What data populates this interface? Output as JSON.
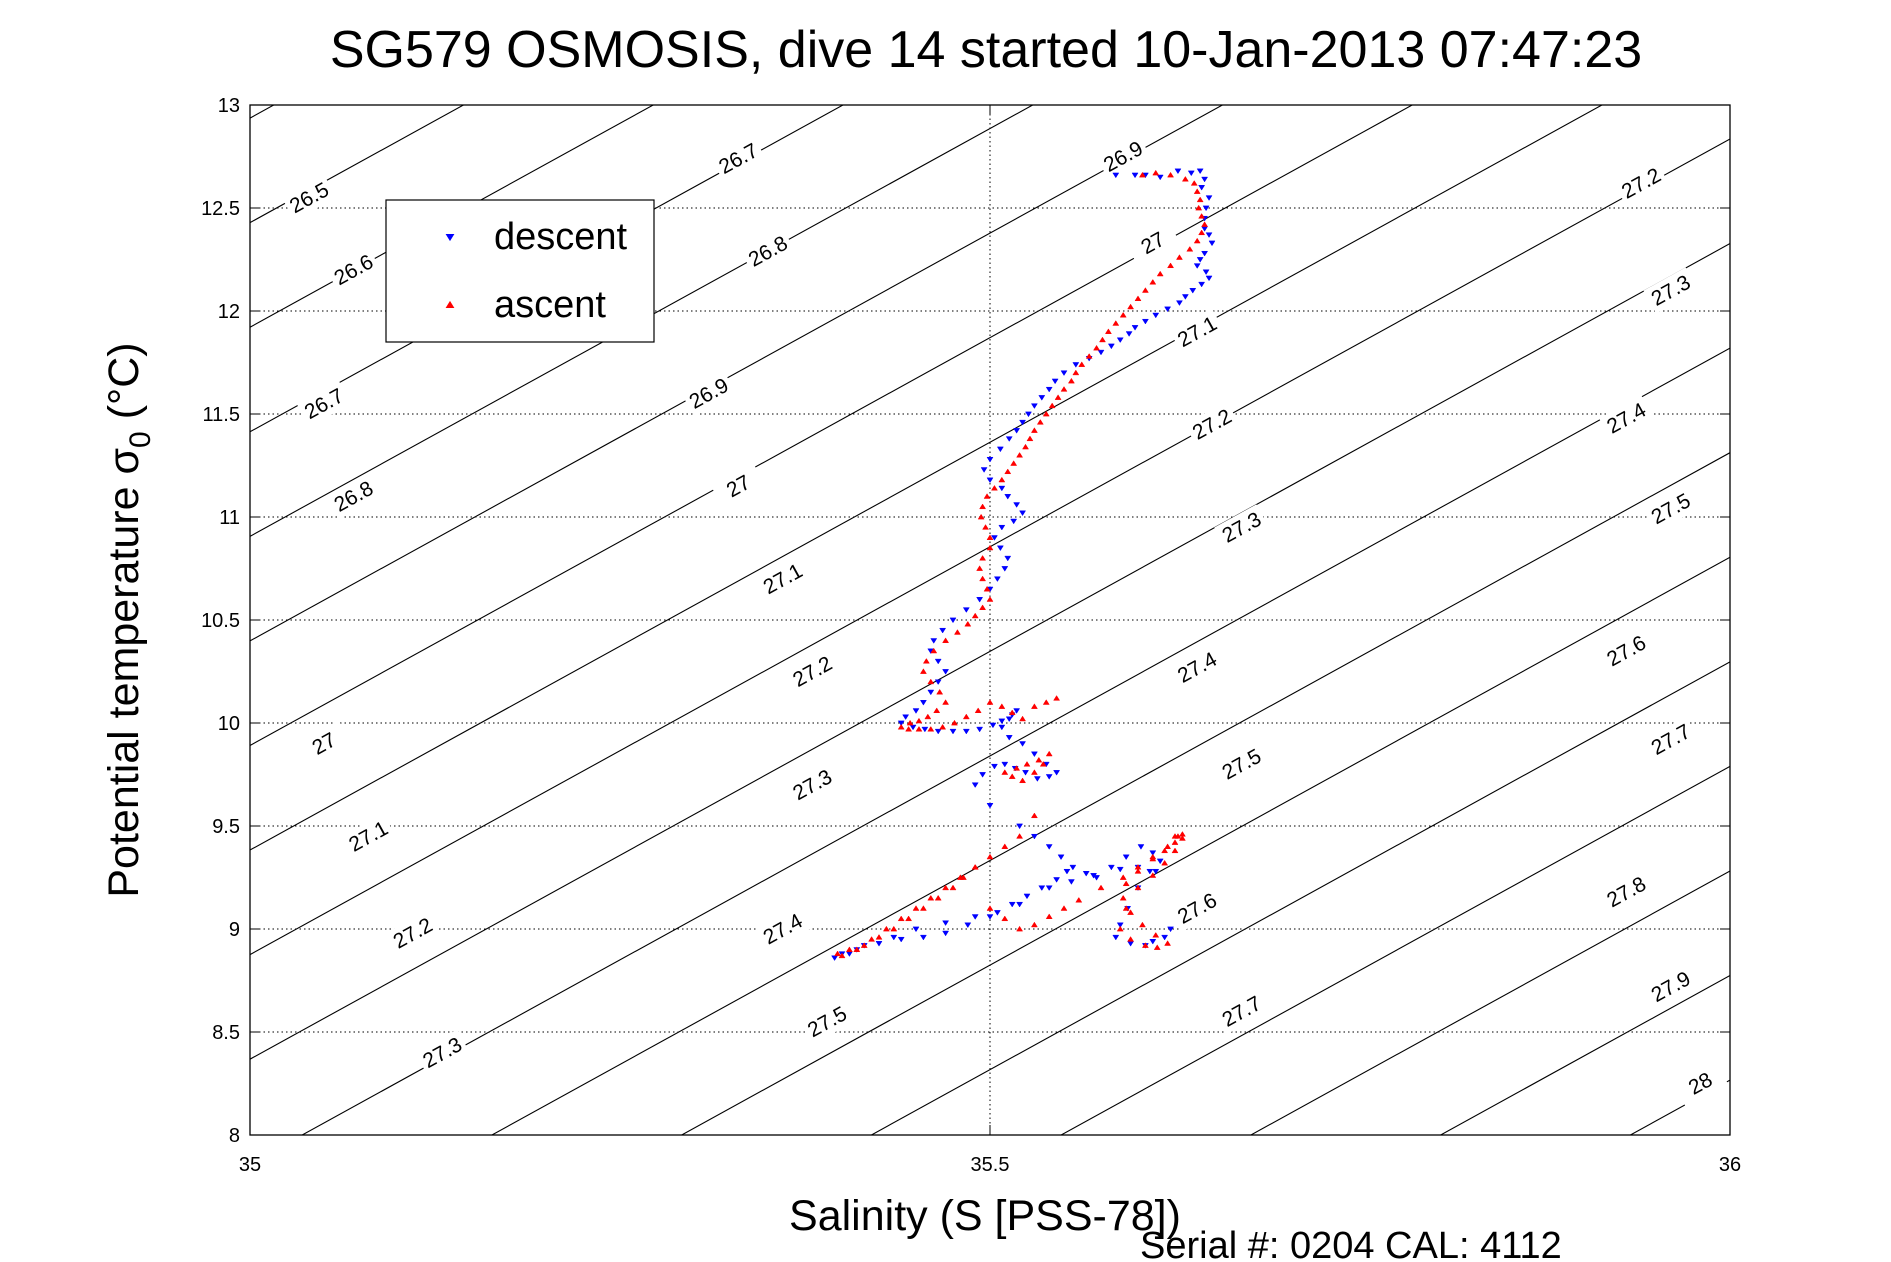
{
  "chart_data": {
    "type": "scatter",
    "title": "SG579 OSMOSIS, dive 14 started 10-Jan-2013 07:47:23",
    "xlabel": "Salinity (S [PSS-78])",
    "ylabel": "Potential temperature",
    "ylabel_symbol": "σ",
    "ylabel_subscript": "0",
    "ylabel_unit": "(°C)",
    "xlim": [
      35,
      36
    ],
    "ylim": [
      8,
      13
    ],
    "x_ticks": [
      35,
      35.5,
      36
    ],
    "x_tick_labels": [
      "35",
      "35.5",
      "36"
    ],
    "y_ticks": [
      8,
      8.5,
      9,
      9.5,
      10,
      10.5,
      11,
      11.5,
      12,
      12.5,
      13
    ],
    "y_tick_labels": [
      "8",
      "8.5",
      "9",
      "9.5",
      "10",
      "10.5",
      "11",
      "11.5",
      "12",
      "12.5",
      "13"
    ],
    "grid": true,
    "legend_position": "top-left",
    "footer": "Serial #: 0204  CAL: 4112",
    "contour_levels": [
      {
        "value": 26.5,
        "label": "26.5",
        "pos": [
          35.04,
          12.55
        ]
      },
      {
        "value": 26.6,
        "label": "26.6",
        "pos": [
          35.07,
          12.2
        ]
      },
      {
        "value": 26.7,
        "label": "26.7",
        "pos": [
          35.05,
          11.55
        ]
      },
      {
        "value": 26.8,
        "label": "26.8",
        "pos": [
          35.07,
          11.1
        ]
      },
      {
        "value": 27.0,
        "label": "27",
        "pos": [
          35.05,
          9.9
        ]
      },
      {
        "value": 27.1,
        "label": "27.1",
        "pos": [
          35.08,
          9.45
        ]
      },
      {
        "value": 27.2,
        "label": "27.2",
        "pos": [
          35.11,
          8.98
        ]
      },
      {
        "value": 27.3,
        "label": "27.3",
        "pos": [
          35.13,
          8.4
        ]
      },
      {
        "value": 26.7,
        "label": "26.7",
        "pos": [
          35.33,
          12.74
        ]
      },
      {
        "value": 26.8,
        "label": "26.8",
        "pos": [
          35.35,
          12.29
        ]
      },
      {
        "value": 26.9,
        "label": "26.9",
        "pos": [
          35.31,
          11.6
        ]
      },
      {
        "value": 27.0,
        "label": "27",
        "pos": [
          35.33,
          11.15
        ]
      },
      {
        "value": 27.1,
        "label": "27.1",
        "pos": [
          35.36,
          10.7
        ]
      },
      {
        "value": 27.2,
        "label": "27.2",
        "pos": [
          35.38,
          10.25
        ]
      },
      {
        "value": 27.3,
        "label": "27.3",
        "pos": [
          35.38,
          9.7
        ]
      },
      {
        "value": 27.4,
        "label": "27.4",
        "pos": [
          35.36,
          9.0
        ]
      },
      {
        "value": 27.5,
        "label": "27.5",
        "pos": [
          35.39,
          8.55
        ]
      },
      {
        "value": 26.9,
        "label": "26.9",
        "pos": [
          35.59,
          12.75
        ]
      },
      {
        "value": 27.0,
        "label": "27",
        "pos": [
          35.61,
          12.33
        ]
      },
      {
        "value": 27.1,
        "label": "27.1",
        "pos": [
          35.64,
          11.9
        ]
      },
      {
        "value": 27.2,
        "label": "27.2",
        "pos": [
          35.65,
          11.45
        ]
      },
      {
        "value": 27.3,
        "label": "27.3",
        "pos": [
          35.67,
          10.95
        ]
      },
      {
        "value": 27.4,
        "label": "27.4",
        "pos": [
          35.64,
          10.27
        ]
      },
      {
        "value": 27.5,
        "label": "27.5",
        "pos": [
          35.67,
          9.8
        ]
      },
      {
        "value": 27.6,
        "label": "27.6",
        "pos": [
          35.64,
          9.1
        ]
      },
      {
        "value": 27.7,
        "label": "27.7",
        "pos": [
          35.67,
          8.6
        ]
      },
      {
        "value": 27.2,
        "label": "27.2",
        "pos": [
          35.94,
          12.62
        ]
      },
      {
        "value": 27.3,
        "label": "27.3",
        "pos": [
          35.96,
          12.1
        ]
      },
      {
        "value": 27.4,
        "label": "27.4",
        "pos": [
          35.93,
          11.48
        ]
      },
      {
        "value": 27.5,
        "label": "27.5",
        "pos": [
          35.96,
          11.04
        ]
      },
      {
        "value": 27.6,
        "label": "27.6",
        "pos": [
          35.93,
          10.35
        ]
      },
      {
        "value": 27.7,
        "label": "27.7",
        "pos": [
          35.96,
          9.92
        ]
      },
      {
        "value": 27.8,
        "label": "27.8",
        "pos": [
          35.93,
          9.18
        ]
      },
      {
        "value": 27.9,
        "label": "27.9",
        "pos": [
          35.96,
          8.72
        ]
      },
      {
        "value": 28.0,
        "label": "28",
        "pos": [
          35.98,
          8.25
        ]
      }
    ],
    "series": [
      {
        "name": "descent",
        "color": "#0000ff",
        "marker": "triangle-down",
        "x": [
          35.585,
          35.598,
          35.605,
          35.615,
          35.627,
          35.636,
          35.642,
          35.645,
          35.643,
          35.648,
          35.646,
          35.645,
          35.645,
          35.648,
          35.65,
          35.645,
          35.642,
          35.64,
          35.646,
          35.648,
          35.643,
          35.637,
          35.632,
          35.628,
          35.62,
          35.612,
          35.605,
          35.598,
          35.594,
          35.588,
          35.582,
          35.575,
          35.567,
          35.558,
          35.55,
          35.544,
          35.54,
          35.535,
          35.53,
          35.526,
          35.522,
          35.518,
          35.513,
          35.507,
          35.5,
          35.496,
          35.5,
          35.508,
          35.512,
          35.518,
          35.522,
          35.516,
          35.508,
          35.503,
          35.507,
          35.512,
          35.51,
          35.505,
          35.5,
          35.493,
          35.484,
          35.475,
          35.468,
          35.462,
          35.46,
          35.465,
          35.47,
          35.465,
          35.46,
          35.455,
          35.45,
          35.443,
          35.44,
          35.448,
          35.456,
          35.465,
          35.475,
          35.484,
          35.493,
          35.502,
          35.508,
          35.515,
          35.518,
          35.513,
          35.508,
          35.513,
          35.522,
          35.53,
          35.538,
          35.545,
          35.54,
          35.532,
          35.524,
          35.517,
          35.51,
          35.503,
          35.495,
          35.49,
          35.5,
          35.52,
          35.53,
          35.54,
          35.548,
          35.556,
          35.565,
          35.572,
          35.582,
          35.592,
          35.602,
          35.61,
          35.615,
          35.608,
          35.6,
          35.593,
          35.588,
          35.585,
          35.595,
          35.605,
          35.61,
          35.618,
          35.622,
          35.612,
          35.6,
          35.588,
          35.57,
          35.555,
          35.54,
          35.52,
          35.5,
          35.485,
          35.47,
          35.455,
          35.44,
          35.425,
          35.41,
          35.4,
          35.395,
          35.405,
          35.415,
          35.435,
          35.45,
          35.47,
          35.49,
          35.505,
          35.515,
          35.525,
          35.535,
          35.545,
          35.552
        ],
        "y": [
          12.66,
          12.66,
          12.66,
          12.65,
          12.68,
          12.67,
          12.68,
          12.64,
          12.6,
          12.55,
          12.5,
          12.45,
          12.4,
          12.37,
          12.33,
          12.28,
          12.25,
          12.22,
          12.19,
          12.16,
          12.13,
          12.1,
          12.07,
          12.04,
          12.01,
          11.98,
          11.95,
          11.92,
          11.89,
          11.86,
          11.83,
          11.8,
          11.77,
          11.74,
          11.7,
          11.66,
          11.62,
          11.58,
          11.54,
          11.5,
          11.46,
          11.42,
          11.38,
          11.33,
          11.28,
          11.23,
          11.18,
          11.14,
          11.1,
          11.06,
          11.02,
          10.98,
          10.95,
          10.9,
          10.85,
          10.8,
          10.75,
          10.7,
          10.65,
          10.6,
          10.55,
          10.5,
          10.45,
          10.4,
          10.35,
          10.3,
          10.25,
          10.2,
          10.15,
          10.1,
          10.06,
          10.03,
          10.0,
          9.98,
          9.97,
          9.96,
          9.96,
          9.96,
          9.97,
          9.99,
          10.01,
          10.04,
          10.06,
          10.02,
          9.98,
          9.93,
          9.9,
          9.85,
          9.8,
          9.76,
          9.74,
          9.73,
          9.76,
          9.78,
          9.8,
          9.79,
          9.75,
          9.7,
          9.6,
          9.5,
          9.45,
          9.4,
          9.35,
          9.3,
          9.27,
          9.25,
          9.3,
          9.35,
          9.4,
          9.37,
          9.33,
          9.28,
          9.2,
          9.1,
          9.02,
          8.96,
          8.93,
          8.92,
          8.94,
          8.96,
          9.0,
          9.28,
          9.3,
          9.29,
          9.26,
          9.23,
          9.2,
          9.12,
          9.06,
          9.02,
          8.98,
          8.96,
          8.95,
          8.93,
          8.9,
          8.88,
          8.86,
          8.88,
          8.92,
          8.96,
          9.0,
          9.03,
          9.06,
          9.08,
          9.12,
          9.16,
          9.2,
          9.24,
          9.28
        ]
      },
      {
        "name": "ascent",
        "color": "#ff0000",
        "marker": "triangle-up",
        "x": [
          35.603,
          35.612,
          35.622,
          35.632,
          35.638,
          35.64,
          35.642,
          35.641,
          35.643,
          35.645,
          35.643,
          35.64,
          35.635,
          35.628,
          35.622,
          35.615,
          35.61,
          35.605,
          35.6,
          35.595,
          35.59,
          35.585,
          35.58,
          35.576,
          35.572,
          35.567,
          35.562,
          35.558,
          35.555,
          35.55,
          35.546,
          35.542,
          35.538,
          35.534,
          35.53,
          35.527,
          35.524,
          35.52,
          35.516,
          35.512,
          35.508,
          35.503,
          35.498,
          35.495,
          35.494,
          35.497,
          35.5,
          35.5,
          35.495,
          35.493,
          35.495,
          35.498,
          35.5,
          35.495,
          35.49,
          35.485,
          35.478,
          35.47,
          35.462,
          35.457,
          35.455,
          35.46,
          35.466,
          35.47,
          35.464,
          35.458,
          35.452,
          35.446,
          35.44,
          35.445,
          35.452,
          35.46,
          35.468,
          35.476,
          35.484,
          35.492,
          35.5,
          35.508,
          35.515,
          35.522,
          35.53,
          35.538,
          35.545,
          35.54,
          35.533,
          35.525,
          35.518,
          35.51,
          35.515,
          35.522,
          35.53,
          35.536,
          35.53,
          35.52,
          35.51,
          35.5,
          35.49,
          35.482,
          35.475,
          35.465,
          35.455,
          35.445,
          35.435,
          35.425,
          35.415,
          35.405,
          35.397,
          35.4,
          35.41,
          35.42,
          35.43,
          35.44,
          35.45,
          35.46,
          35.47,
          35.48,
          35.49,
          35.5,
          35.51,
          35.52,
          35.53,
          35.54,
          35.55,
          35.56,
          35.575,
          35.59,
          35.6,
          35.61,
          35.62,
          35.625,
          35.63,
          35.625,
          35.618,
          35.61,
          35.6,
          35.592,
          35.588,
          35.595,
          35.605,
          35.613,
          35.62,
          35.612,
          35.603,
          35.595,
          35.59,
          35.592,
          35.6,
          35.61,
          35.618,
          35.625,
          35.63,
          35.627
        ],
        "y": [
          12.66,
          12.67,
          12.66,
          12.64,
          12.62,
          12.58,
          12.54,
          12.5,
          12.46,
          12.42,
          12.38,
          12.34,
          12.3,
          12.26,
          12.22,
          12.18,
          12.14,
          12.1,
          12.06,
          12.02,
          11.98,
          11.94,
          11.9,
          11.86,
          11.82,
          11.78,
          11.74,
          11.7,
          11.66,
          11.62,
          11.58,
          11.54,
          11.5,
          11.46,
          11.42,
          11.38,
          11.34,
          11.3,
          11.26,
          11.22,
          11.18,
          11.14,
          11.1,
          11.05,
          11.0,
          10.95,
          10.9,
          10.85,
          10.8,
          10.75,
          10.7,
          10.65,
          10.6,
          10.56,
          10.52,
          10.48,
          10.44,
          10.4,
          10.35,
          10.3,
          10.25,
          10.2,
          10.15,
          10.1,
          10.06,
          10.03,
          10.01,
          10.0,
          9.98,
          9.97,
          9.97,
          9.97,
          9.98,
          10.0,
          10.03,
          10.06,
          10.1,
          10.08,
          10.05,
          10.02,
          10.08,
          10.1,
          10.12,
          9.85,
          9.82,
          9.8,
          9.78,
          9.76,
          9.74,
          9.72,
          9.76,
          9.8,
          9.55,
          9.45,
          9.4,
          9.35,
          9.3,
          9.25,
          9.2,
          9.15,
          9.1,
          9.05,
          9.0,
          8.96,
          8.92,
          8.9,
          8.88,
          8.87,
          8.9,
          8.95,
          9.0,
          9.05,
          9.1,
          9.15,
          9.2,
          9.25,
          9.3,
          9.1,
          9.05,
          9.0,
          9.02,
          9.06,
          9.1,
          9.14,
          9.2,
          9.25,
          9.3,
          9.35,
          9.4,
          9.45,
          9.44,
          9.38,
          9.32,
          9.26,
          9.2,
          9.1,
          9.0,
          8.95,
          8.92,
          8.91,
          8.93,
          8.97,
          9.02,
          9.08,
          9.15,
          9.22,
          9.28,
          9.34,
          9.38,
          9.42,
          9.46,
          9.45
        ]
      }
    ]
  }
}
